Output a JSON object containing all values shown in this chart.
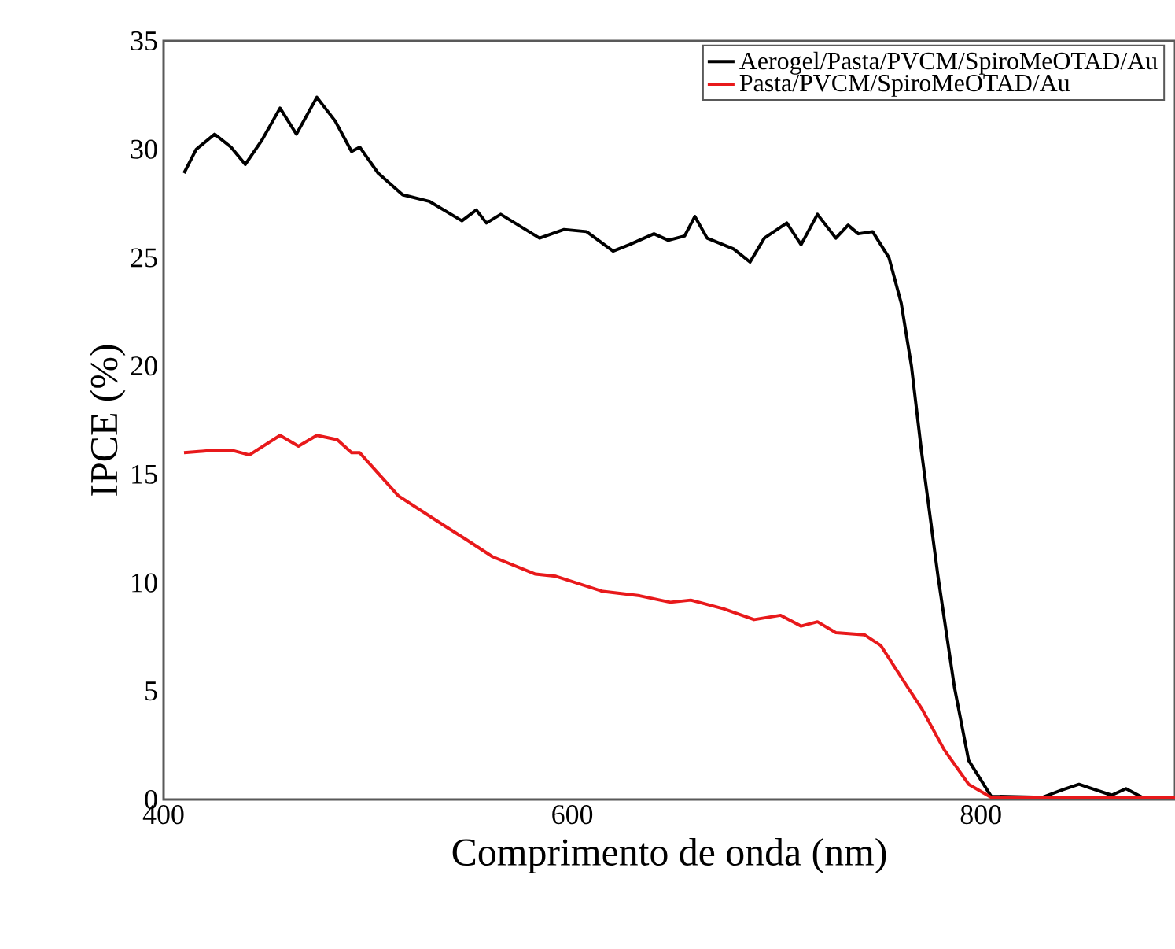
{
  "chart_data": {
    "type": "line",
    "xlabel": "Comprimento de onda (nm)",
    "ylabel": "IPCE (%)",
    "xlim": [
      400,
      895
    ],
    "ylim": [
      0,
      35
    ],
    "xticks": [
      400,
      600,
      800
    ],
    "yticks": [
      0,
      5,
      10,
      15,
      20,
      25,
      30,
      35
    ],
    "legend": "top right",
    "grid": false,
    "marker": "none",
    "line_style": "solid",
    "series": [
      {
        "name": "Aerogel/Pasta/PVCM/SpiroMeOTAD/Au",
        "color": "#000000",
        "x": [
          410,
          416,
          425,
          433,
          440,
          448,
          457,
          465,
          475,
          484,
          492,
          496,
          505,
          517,
          530,
          546,
          553,
          558,
          565,
          584,
          596,
          607,
          620,
          628,
          640,
          647,
          655,
          660,
          666,
          679,
          687,
          694,
          705,
          712,
          720,
          729,
          735,
          740,
          747,
          755,
          761,
          766,
          771,
          779,
          787,
          794,
          805,
          830,
          840,
          848,
          856,
          864,
          871,
          879,
          895
        ],
        "values": [
          28.9,
          30.0,
          30.7,
          30.1,
          29.3,
          30.4,
          31.9,
          30.7,
          32.4,
          31.3,
          29.9,
          30.1,
          28.9,
          27.9,
          27.6,
          26.7,
          27.2,
          26.6,
          27.0,
          25.9,
          26.3,
          26.2,
          25.3,
          25.6,
          26.1,
          25.8,
          26.0,
          26.9,
          25.9,
          25.4,
          24.8,
          25.9,
          26.6,
          25.6,
          27.0,
          25.9,
          26.5,
          26.1,
          26.2,
          25.0,
          22.9,
          20.0,
          16.0,
          10.3,
          5.2,
          1.8,
          0.15,
          0.1,
          0.45,
          0.7,
          0.45,
          0.2,
          0.5,
          0.1,
          0.1
        ]
      },
      {
        "name": "Pasta/PVCM/SpiroMeOTAD/Au",
        "color": "#e8191b",
        "x": [
          410,
          423,
          434,
          442,
          457,
          466,
          475,
          485,
          492,
          496,
          515,
          538,
          548,
          561,
          582,
          592,
          615,
          633,
          648,
          658,
          674,
          689,
          702,
          712,
          720,
          729,
          743,
          751,
          764,
          771,
          782,
          794,
          805,
          895
        ],
        "values": [
          16.0,
          16.1,
          16.1,
          15.9,
          16.8,
          16.3,
          16.8,
          16.6,
          16.0,
          16.0,
          14.0,
          12.6,
          12.0,
          11.2,
          10.4,
          10.3,
          9.6,
          9.4,
          9.1,
          9.2,
          8.8,
          8.3,
          8.5,
          8.0,
          8.2,
          7.7,
          7.6,
          7.1,
          5.2,
          4.2,
          2.3,
          0.7,
          0.1,
          0.1
        ]
      }
    ]
  }
}
